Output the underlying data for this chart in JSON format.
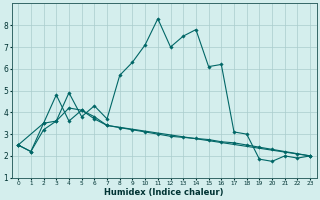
{
  "xlabel": "Humidex (Indice chaleur)",
  "bg_color": "#d4eeed",
  "line_color": "#006666",
  "grid_color": "#aacccc",
  "xlim": [
    -0.5,
    23.5
  ],
  "ylim": [
    1,
    9
  ],
  "yticks": [
    1,
    2,
    3,
    4,
    5,
    6,
    7,
    8
  ],
  "xticks": [
    0,
    1,
    2,
    3,
    4,
    5,
    6,
    7,
    8,
    9,
    10,
    11,
    12,
    13,
    14,
    15,
    16,
    17,
    18,
    19,
    20,
    21,
    22,
    23
  ],
  "line1_x": [
    0,
    1,
    2,
    3,
    4,
    5,
    6,
    7,
    8,
    9,
    10,
    11,
    12,
    13,
    14,
    15,
    16,
    17,
    18,
    19,
    20,
    21,
    22,
    23
  ],
  "line1_y": [
    2.5,
    2.2,
    3.2,
    3.6,
    4.9,
    3.8,
    4.3,
    3.7,
    5.7,
    6.3,
    7.1,
    8.3,
    7.0,
    7.5,
    7.8,
    6.1,
    6.2,
    3.1,
    3.0,
    1.85,
    1.75,
    2.0,
    1.9,
    2.0
  ],
  "line2_x": [
    0,
    2,
    3,
    4,
    5,
    6,
    7,
    23
  ],
  "line2_y": [
    2.5,
    3.5,
    4.8,
    3.6,
    4.1,
    3.7,
    3.4,
    2.0
  ],
  "line3_x": [
    0,
    1,
    2,
    3,
    4,
    5,
    6,
    7,
    8,
    9,
    10,
    11,
    12,
    13,
    14,
    15,
    16,
    17,
    18,
    19,
    20,
    21,
    22,
    23
  ],
  "line3_y": [
    2.5,
    2.2,
    3.5,
    3.6,
    4.2,
    4.1,
    3.8,
    3.4,
    3.3,
    3.2,
    3.1,
    3.0,
    2.9,
    2.85,
    2.8,
    2.75,
    2.65,
    2.6,
    2.5,
    2.4,
    2.3,
    2.2,
    2.1,
    2.0
  ]
}
